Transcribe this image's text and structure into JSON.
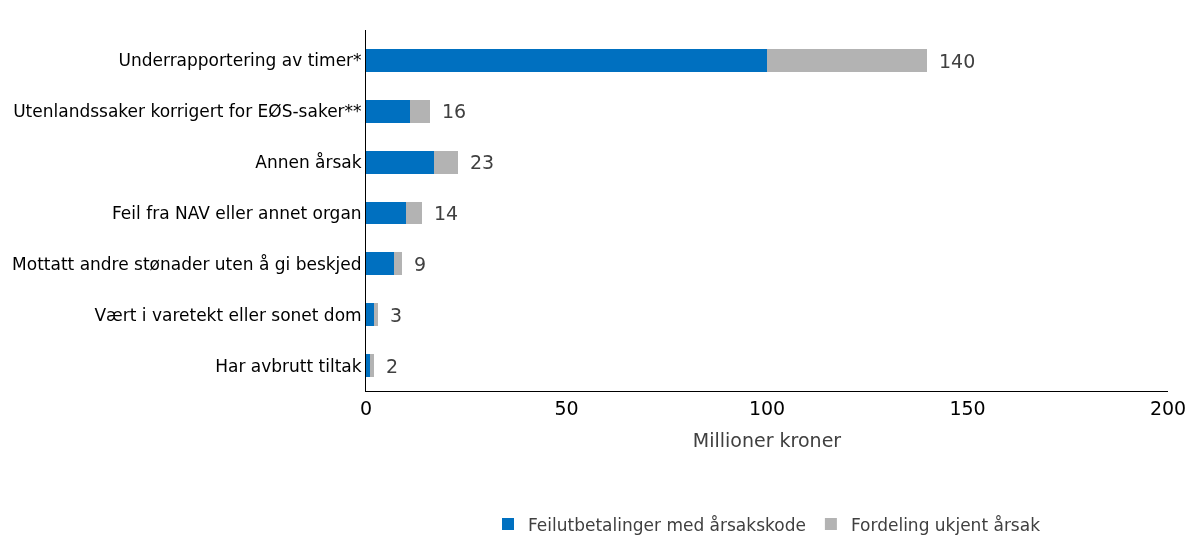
{
  "chart_data": {
    "type": "bar",
    "orientation": "horizontal",
    "stacked": true,
    "categories": [
      "Underrapportering av timer*",
      "Utenlandssaker korrigert for EØS-saker**",
      "Annen årsak",
      "Feil fra NAV eller annet organ",
      "Mottatt andre stønader uten å gi beskjed",
      "Vært i varetekt eller sonet dom",
      "Har avbrutt tiltak"
    ],
    "series": [
      {
        "name": "Feilutbetalinger med årsakskode",
        "color": "#0070c0",
        "values": [
          100,
          11,
          17,
          10,
          7,
          2,
          1
        ]
      },
      {
        "name": "Fordeling ukjent årsak",
        "color": "#b3b3b3",
        "values": [
          40,
          5,
          6,
          4,
          2,
          1,
          1
        ]
      }
    ],
    "totals": [
      "140",
      "16",
      "23",
      "14",
      "9",
      "3",
      "2"
    ],
    "xlabel": "Millioner kroner",
    "xlim": [
      0,
      200
    ],
    "xticks": [
      0,
      50,
      100,
      150,
      200
    ],
    "legend": "bottom"
  }
}
